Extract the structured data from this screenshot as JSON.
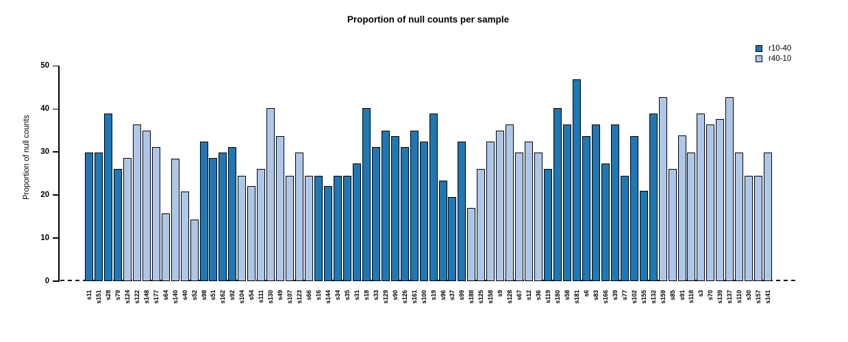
{
  "chart_data": {
    "type": "bar",
    "title": "Proportion of null counts per sample",
    "ylabel": "Proportion of null counts",
    "xlabel": "",
    "ylim": [
      0,
      50
    ],
    "yticks": [
      0,
      10,
      20,
      30,
      40,
      50
    ],
    "grid": false,
    "zero_line_style": "dashed",
    "bar_edge_color": "#000000",
    "legend": {
      "position": "top-right",
      "entries": [
        {
          "label": "r10-40",
          "color": "#1f77b4"
        },
        {
          "label": "r40-10",
          "color": "#aec7e8"
        }
      ]
    },
    "bars": [
      {
        "sample": "s11",
        "value": 29.8,
        "group": "r10-40"
      },
      {
        "sample": "s151",
        "value": 29.8,
        "group": "r10-40"
      },
      {
        "sample": "s28",
        "value": 38.9,
        "group": "r10-40"
      },
      {
        "sample": "s79",
        "value": 26.0,
        "group": "r10-40"
      },
      {
        "sample": "s124",
        "value": 28.6,
        "group": "r40-10"
      },
      {
        "sample": "s122",
        "value": 36.4,
        "group": "r40-10"
      },
      {
        "sample": "s148",
        "value": 35.0,
        "group": "r40-10"
      },
      {
        "sample": "s177",
        "value": 31.2,
        "group": "r40-10"
      },
      {
        "sample": "s64",
        "value": 15.7,
        "group": "r40-10"
      },
      {
        "sample": "s140",
        "value": 28.5,
        "group": "r40-10"
      },
      {
        "sample": "s40",
        "value": 20.8,
        "group": "r40-10"
      },
      {
        "sample": "s52",
        "value": 14.3,
        "group": "r40-10"
      },
      {
        "sample": "s98",
        "value": 32.4,
        "group": "r10-40"
      },
      {
        "sample": "s51",
        "value": 28.6,
        "group": "r10-40"
      },
      {
        "sample": "s162",
        "value": 29.8,
        "group": "r10-40"
      },
      {
        "sample": "s92",
        "value": 31.2,
        "group": "r10-40"
      },
      {
        "sample": "s104",
        "value": 24.5,
        "group": "r40-10"
      },
      {
        "sample": "s54",
        "value": 22.1,
        "group": "r40-10"
      },
      {
        "sample": "s111",
        "value": 26.1,
        "group": "r40-10"
      },
      {
        "sample": "s130",
        "value": 40.2,
        "group": "r40-10"
      },
      {
        "sample": "s49",
        "value": 33.7,
        "group": "r40-10"
      },
      {
        "sample": "s107",
        "value": 24.5,
        "group": "r40-10"
      },
      {
        "sample": "s123",
        "value": 29.8,
        "group": "r40-10"
      },
      {
        "sample": "s66",
        "value": 24.5,
        "group": "r40-10"
      },
      {
        "sample": "s16",
        "value": 24.5,
        "group": "r10-40"
      },
      {
        "sample": "s144",
        "value": 22.1,
        "group": "r10-40"
      },
      {
        "sample": "s34",
        "value": 24.5,
        "group": "r10-40"
      },
      {
        "sample": "s35",
        "value": 24.5,
        "group": "r10-40"
      },
      {
        "sample": "s31",
        "value": 27.3,
        "group": "r10-40"
      },
      {
        "sample": "s18",
        "value": 40.2,
        "group": "r10-40"
      },
      {
        "sample": "s33",
        "value": 31.2,
        "group": "r10-40"
      },
      {
        "sample": "s129",
        "value": 35.0,
        "group": "r10-40"
      },
      {
        "sample": "s90",
        "value": 33.7,
        "group": "r10-40"
      },
      {
        "sample": "s126",
        "value": 31.2,
        "group": "r10-40"
      },
      {
        "sample": "s161",
        "value": 35.0,
        "group": "r10-40"
      },
      {
        "sample": "s100",
        "value": 32.4,
        "group": "r10-40"
      },
      {
        "sample": "s19",
        "value": 38.9,
        "group": "r10-40"
      },
      {
        "sample": "s96",
        "value": 23.3,
        "group": "r10-40"
      },
      {
        "sample": "s37",
        "value": 19.6,
        "group": "r10-40"
      },
      {
        "sample": "s99",
        "value": 32.4,
        "group": "r10-40"
      },
      {
        "sample": "s188",
        "value": 17.0,
        "group": "r40-10"
      },
      {
        "sample": "s125",
        "value": 26.0,
        "group": "r40-10"
      },
      {
        "sample": "s158",
        "value": 32.4,
        "group": "r40-10"
      },
      {
        "sample": "s9",
        "value": 35.0,
        "group": "r40-10"
      },
      {
        "sample": "s128",
        "value": 36.4,
        "group": "r40-10"
      },
      {
        "sample": "s67",
        "value": 29.8,
        "group": "r40-10"
      },
      {
        "sample": "s12",
        "value": 32.4,
        "group": "r40-10"
      },
      {
        "sample": "s36",
        "value": 29.8,
        "group": "r40-10"
      },
      {
        "sample": "s119",
        "value": 26.0,
        "group": "r10-40"
      },
      {
        "sample": "s180",
        "value": 40.2,
        "group": "r10-40"
      },
      {
        "sample": "s58",
        "value": 36.4,
        "group": "r10-40"
      },
      {
        "sample": "s181",
        "value": 46.8,
        "group": "r10-40"
      },
      {
        "sample": "s6",
        "value": 33.7,
        "group": "r10-40"
      },
      {
        "sample": "s83",
        "value": 36.4,
        "group": "r10-40"
      },
      {
        "sample": "s166",
        "value": 27.3,
        "group": "r10-40"
      },
      {
        "sample": "s39",
        "value": 36.4,
        "group": "r10-40"
      },
      {
        "sample": "s77",
        "value": 24.5,
        "group": "r10-40"
      },
      {
        "sample": "s102",
        "value": 33.7,
        "group": "r10-40"
      },
      {
        "sample": "s155",
        "value": 20.9,
        "group": "r10-40"
      },
      {
        "sample": "s132",
        "value": 38.9,
        "group": "r10-40"
      },
      {
        "sample": "s159",
        "value": 42.8,
        "group": "r40-10"
      },
      {
        "sample": "s85",
        "value": 26.0,
        "group": "r40-10"
      },
      {
        "sample": "s91",
        "value": 33.8,
        "group": "r40-10"
      },
      {
        "sample": "s118",
        "value": 29.8,
        "group": "r40-10"
      },
      {
        "sample": "s3",
        "value": 38.9,
        "group": "r40-10"
      },
      {
        "sample": "s70",
        "value": 36.4,
        "group": "r40-10"
      },
      {
        "sample": "s139",
        "value": 37.6,
        "group": "r40-10"
      },
      {
        "sample": "s137",
        "value": 42.8,
        "group": "r40-10"
      },
      {
        "sample": "s110",
        "value": 29.8,
        "group": "r40-10"
      },
      {
        "sample": "s30",
        "value": 24.5,
        "group": "r40-10"
      },
      {
        "sample": "s157",
        "value": 24.5,
        "group": "r40-10"
      },
      {
        "sample": "s141",
        "value": 29.8,
        "group": "r40-10"
      }
    ]
  }
}
